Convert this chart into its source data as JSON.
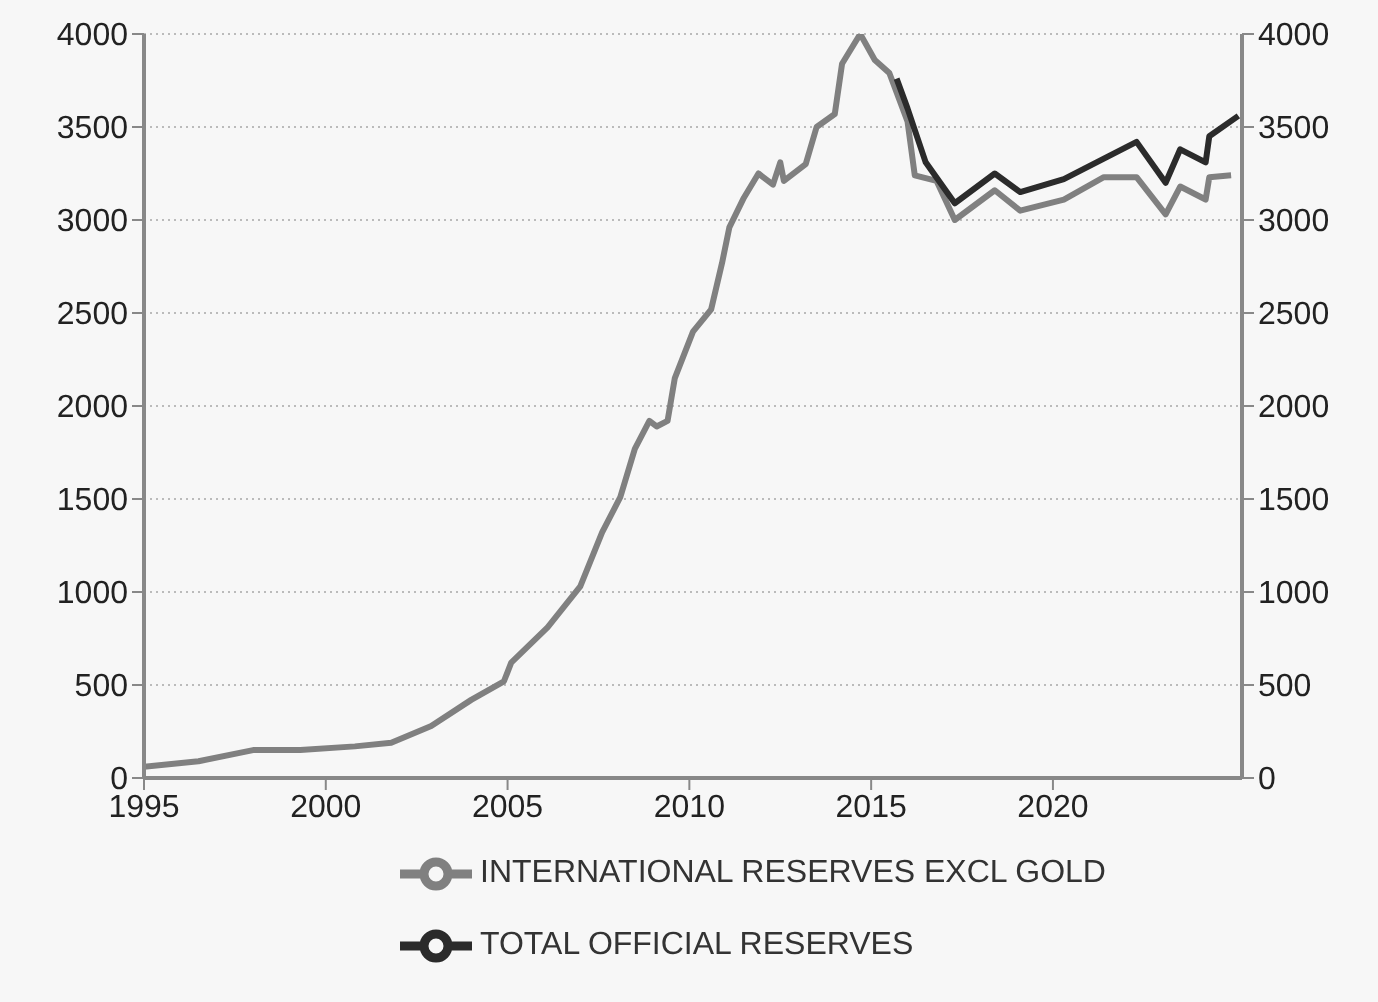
{
  "chart_data": {
    "type": "line",
    "xlim": [
      1995,
      2025.2
    ],
    "xticks": [
      1995,
      2000,
      2005,
      2010,
      2015,
      2020
    ],
    "ylim": [
      0,
      4000
    ],
    "yticks": [
      0,
      500,
      1000,
      1500,
      2000,
      2500,
      3000,
      3500,
      4000
    ],
    "y2lim": [
      0,
      4000
    ],
    "y2ticks": [
      0,
      500,
      1000,
      1500,
      2000,
      2500,
      3000,
      3500,
      4000
    ],
    "grid": "y",
    "legend": "bottom",
    "line_style": "solid",
    "marker": "none",
    "series": [
      {
        "name": "INTERNATIONAL RESERVES EXCL GOLD",
        "color": "#808080",
        "x": [
          1995.0,
          1996.5,
          1998.0,
          1999.3,
          2000.8,
          2001.8,
          2002.9,
          2004.0,
          2004.9,
          2005.1,
          2006.1,
          2007.0,
          2007.6,
          2008.1,
          2008.5,
          2008.9,
          2009.1,
          2009.4,
          2009.6,
          2010.1,
          2010.6,
          2010.9,
          2011.1,
          2011.5,
          2011.9,
          2012.3,
          2012.5,
          2012.6,
          2013.2,
          2013.5,
          2014.0,
          2014.2,
          2014.7,
          2015.1,
          2015.5,
          2016.0,
          2016.2,
          2016.8,
          2017.3,
          2018.4,
          2019.1,
          2020.3,
          2021.4,
          2022.3,
          2023.1,
          2023.5,
          2024.2,
          2024.3,
          2024.9
        ],
        "values": [
          60,
          90,
          150,
          150,
          170,
          190,
          280,
          420,
          520,
          620,
          810,
          1030,
          1320,
          1510,
          1770,
          1920,
          1890,
          1920,
          2150,
          2400,
          2520,
          2770,
          2960,
          3120,
          3250,
          3190,
          3310,
          3210,
          3300,
          3500,
          3570,
          3840,
          4000,
          3860,
          3790,
          3530,
          3240,
          3210,
          3000,
          3160,
          3050,
          3110,
          3230,
          3230,
          3030,
          3180,
          3110,
          3230,
          3240
        ]
      },
      {
        "name": "TOTAL OFFICIAL RESERVES",
        "color": "#2b2b2b",
        "x": [
          2015.7,
          2016.0,
          2016.5,
          2017.3,
          2018.4,
          2019.1,
          2020.3,
          2021.4,
          2022.3,
          2023.1,
          2023.5,
          2024.2,
          2024.3,
          2025.1
        ],
        "values": [
          3760,
          3600,
          3310,
          3090,
          3250,
          3150,
          3220,
          3330,
          3420,
          3200,
          3380,
          3310,
          3450,
          3560
        ]
      }
    ]
  }
}
